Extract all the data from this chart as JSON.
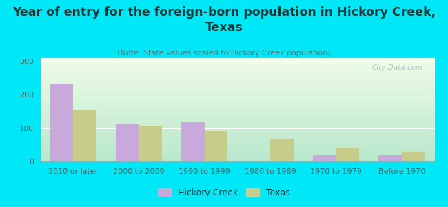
{
  "categories": [
    "2010 or later",
    "2000 to 2009",
    "1990 to 1999",
    "1980 to 1989",
    "1970 to 1979",
    "Before 1970"
  ],
  "hickory_creek": [
    232,
    112,
    117,
    3,
    18,
    18
  ],
  "texas": [
    155,
    107,
    90,
    68,
    42,
    28
  ],
  "hickory_creek_color": "#c9a8dc",
  "texas_color": "#c8cc8a",
  "background_color": "#00e8f8",
  "title": "Year of entry for the foreign-born population in Hickory Creek,\nTexas",
  "subtitle": "(Note: State values scaled to Hickory Creek population)",
  "ylabel_ticks": [
    0,
    100,
    200,
    300
  ],
  "ylim": [
    0,
    310
  ],
  "bar_width": 0.35,
  "title_fontsize": 12.5,
  "subtitle_fontsize": 8,
  "tick_fontsize": 8,
  "legend_fontsize": 9,
  "watermark": "City-Data.com",
  "grad_colors": [
    "#c8eedd",
    "#f4fce8"
  ],
  "title_color": "#1a3a3a",
  "subtitle_color": "#557777"
}
